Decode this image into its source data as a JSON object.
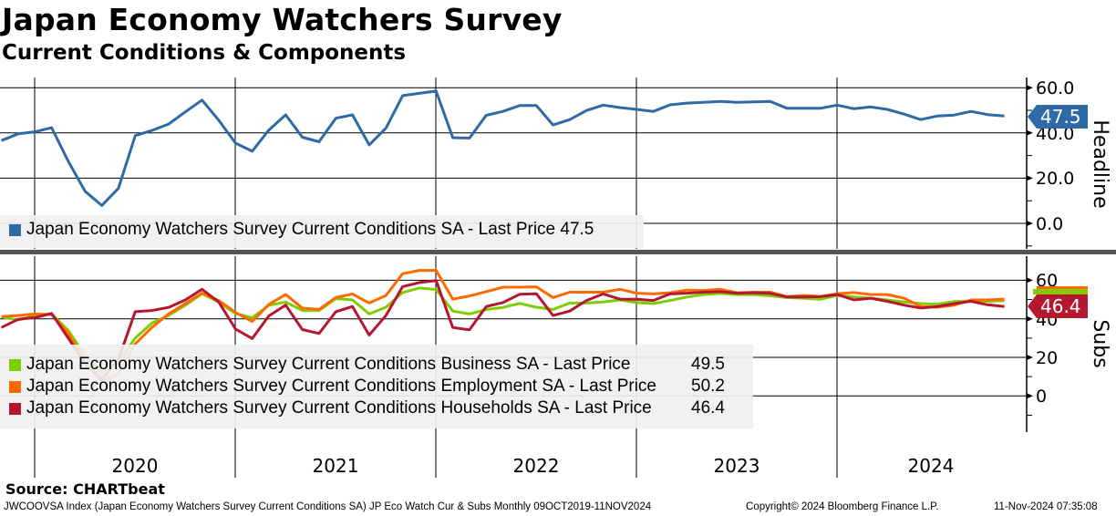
{
  "header": {
    "title": "Japan Economy Watchers Survey",
    "subtitle": "Current Conditions & Components"
  },
  "chart_data": [
    {
      "type": "line",
      "panel": "Headline",
      "x_start": "2019-11",
      "frequency": "monthly",
      "x_tick_labels": [
        "2020",
        "2021",
        "2022",
        "2023",
        "2024"
      ],
      "ylabel": "Headline",
      "ylim": [
        -10,
        65
      ],
      "y_ticks": [
        "60.0",
        "40.0",
        "20.0",
        "0.0"
      ],
      "grid": true,
      "legend_placement": "bottom-left",
      "series": [
        {
          "name": "Japan Economy Watchers Survey Current Conditions SA - Last Price 47.5",
          "color": "#2e6aa6",
          "last": "47.5",
          "values": [
            36.6,
            39.6,
            40.5,
            42.3,
            27.4,
            14.2,
            7.9,
            15.5,
            38.8,
            41.1,
            43.9,
            49.3,
            54.5,
            45.6,
            35.5,
            31.9,
            41.3,
            48.0,
            38.1,
            36.1,
            46.5,
            48.0,
            34.7,
            42.1,
            56.5,
            57.5,
            58.5,
            37.9,
            37.7,
            47.8,
            49.5,
            52.1,
            52.1,
            43.5,
            45.9,
            49.9,
            52.3,
            51.2,
            50.4,
            49.5,
            52.4,
            53.2,
            53.5,
            53.9,
            53.5,
            53.7,
            53.9,
            50.9,
            50.9,
            50.9,
            52.3,
            50.7,
            51.5,
            50.4,
            48.3,
            45.9,
            47.5,
            47.9,
            49.5,
            48.1,
            47.5
          ]
        }
      ]
    },
    {
      "type": "line",
      "panel": "Subs",
      "x_start": "2019-11",
      "frequency": "monthly",
      "ylabel": "Subs",
      "ylim": [
        -18,
        72
      ],
      "y_ticks": [
        "60",
        "40",
        "20",
        "0"
      ],
      "grid": true,
      "legend_placement": "bottom-left",
      "series": [
        {
          "name": "Japan Economy Watchers Survey Current Conditions Business SA - Last Price",
          "last": "49.5",
          "color": "#7fcc00",
          "values": [
            40.9,
            39.4,
            41.7,
            42.5,
            34.0,
            20.8,
            12.2,
            17.7,
            30.0,
            37.8,
            41.7,
            47.1,
            53.0,
            48.7,
            42.8,
            40.5,
            47.0,
            48.7,
            44.3,
            44.3,
            50.5,
            49.8,
            42.5,
            46.0,
            53.6,
            56.0,
            55.2,
            44.0,
            42.5,
            44.8,
            45.9,
            48.0,
            46.0,
            44.8,
            48.2,
            48.2,
            48.7,
            49.8,
            48.4,
            47.9,
            49.5,
            51.3,
            52.6,
            53.2,
            52.6,
            52.6,
            51.9,
            51.0,
            50.7,
            50.1,
            52.2,
            51.3,
            50.7,
            49.8,
            48.7,
            47.9,
            47.6,
            49.0,
            49.1,
            49.1,
            49.5
          ]
        },
        {
          "name": "Japan Economy Watchers Survey Current Conditions Employment SA - Last Price",
          "last": "50.2",
          "color": "#ff6a00",
          "values": [
            41.2,
            41.7,
            42.5,
            42.2,
            32.4,
            17.7,
            7.6,
            11.5,
            27.0,
            35.5,
            42.5,
            47.9,
            53.3,
            49.5,
            43.3,
            38.6,
            47.5,
            52.6,
            45.6,
            44.8,
            51.0,
            52.9,
            48.2,
            52.1,
            63.4,
            65.1,
            65.1,
            50.2,
            51.8,
            54.1,
            56.4,
            56.4,
            56.6,
            51.0,
            53.8,
            53.8,
            53.8,
            55.3,
            53.3,
            52.9,
            53.5,
            54.9,
            54.7,
            55.3,
            53.5,
            53.8,
            53.8,
            51.5,
            52.1,
            51.6,
            53.0,
            53.6,
            52.6,
            52.6,
            50.7,
            46.4,
            46.0,
            47.1,
            49.8,
            49.8,
            50.2
          ]
        },
        {
          "name": "Japan Economy Watchers Survey Current Conditions Households SA - Last Price",
          "last": "46.4",
          "color": "#b5172f",
          "values": [
            35.5,
            39.7,
            40.6,
            42.8,
            30.0,
            16.9,
            8.4,
            19.0,
            43.7,
            44.3,
            45.9,
            49.8,
            55.3,
            48.7,
            34.7,
            29.8,
            41.5,
            47.1,
            34.4,
            32.4,
            43.7,
            46.4,
            31.6,
            41.7,
            56.7,
            58.8,
            59.8,
            35.5,
            34.3,
            46.4,
            48.4,
            52.7,
            53.0,
            41.7,
            44.0,
            49.5,
            52.9,
            50.2,
            50.1,
            49.5,
            52.9,
            53.3,
            53.8,
            54.1,
            53.3,
            53.5,
            53.2,
            51.3,
            51.3,
            51.5,
            52.6,
            49.8,
            50.7,
            49.1,
            47.1,
            45.6,
            46.4,
            47.9,
            49.1,
            47.3,
            46.4
          ]
        }
      ]
    }
  ],
  "source": "Source: CHARTbeat",
  "footer": {
    "description": "JWCOOVSA Index (Japan Economy Watchers Survey Current Conditions SA) JP Eco Watch Cur & Subs  Monthly 09OCT2019-11NOV2024",
    "copyright": "Copyright© 2024 Bloomberg Finance L.P.",
    "timestamp": "11-Nov-2024 07:35:08"
  }
}
